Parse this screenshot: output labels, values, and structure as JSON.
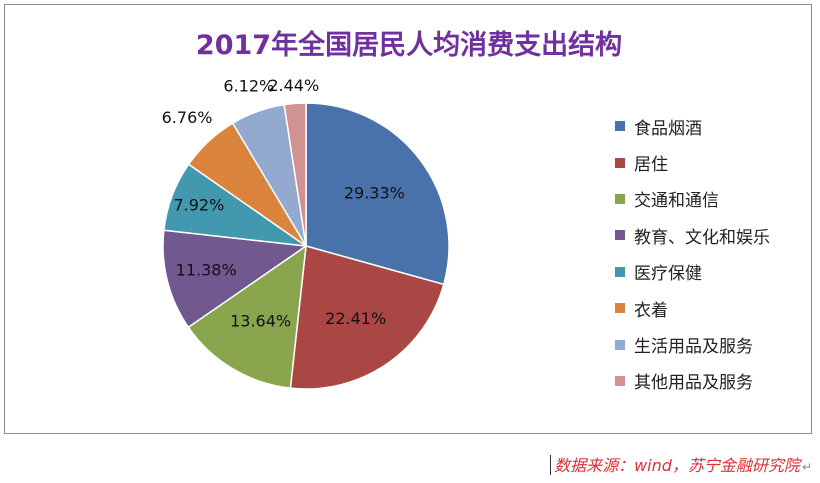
{
  "chart_data": {
    "type": "pie",
    "title": "2017年全国居民人均消费支出结构",
    "categories": [
      "食品烟酒",
      "居住",
      "交通和通信",
      "教育、文化和娱乐",
      "医疗保健",
      "衣着",
      "生活用品及服务",
      "其他用品及服务"
    ],
    "values": [
      29.33,
      22.41,
      13.64,
      11.38,
      7.92,
      6.76,
      6.12,
      2.44
    ],
    "data_labels": [
      "29.33%",
      "22.41%",
      "13.64%",
      "11.38%",
      "7.92%",
      "6.76%",
      "6.12%",
      "2.44%"
    ],
    "colors": [
      "#4a72aa",
      "#aa4643",
      "#89a54e",
      "#71588f",
      "#4198af",
      "#db843d",
      "#93a9cf",
      "#d19392"
    ],
    "legend_position": "right",
    "start_angle": "12 o'clock, clockwise"
  },
  "source_note": "数据来源：wind，苏宁金融研究院",
  "return_mark": "↵"
}
